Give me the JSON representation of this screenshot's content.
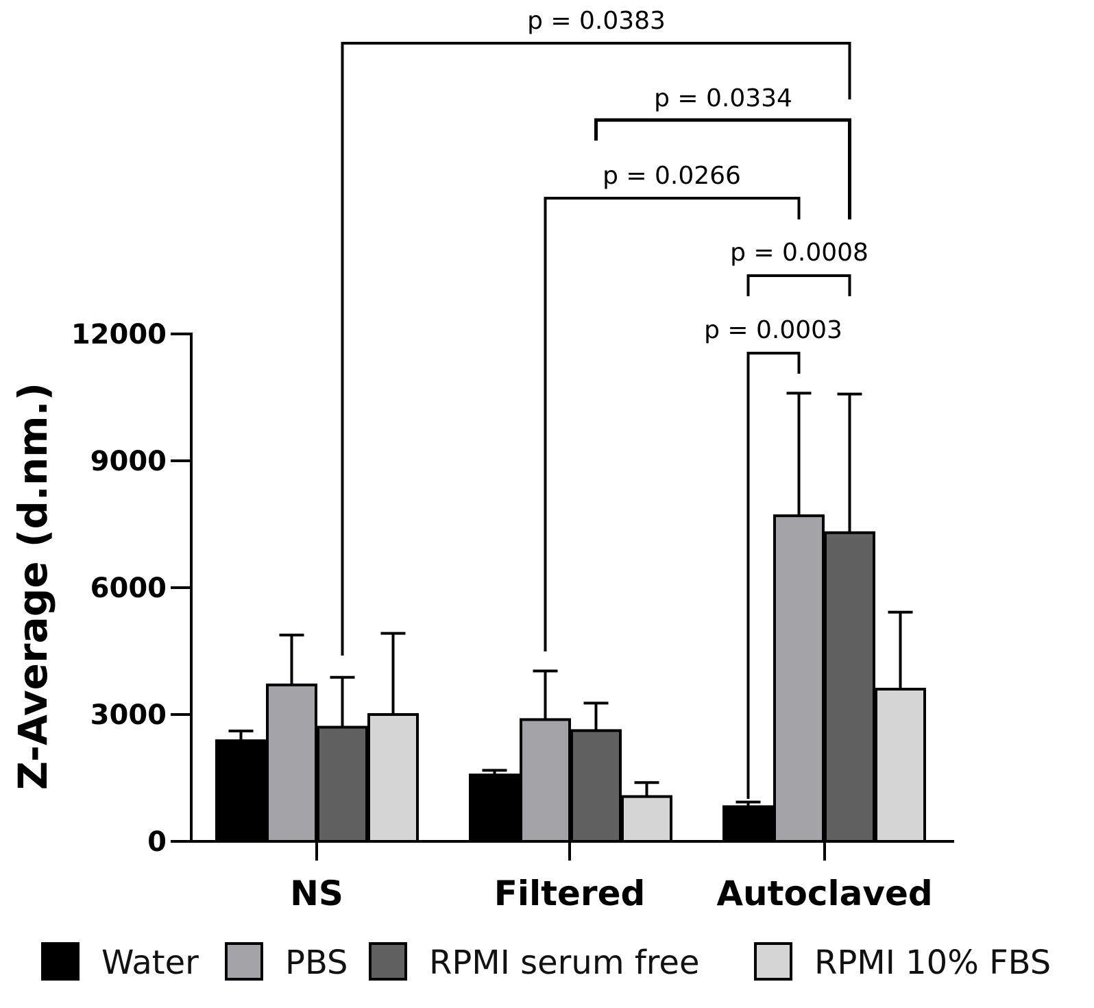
{
  "chart_data": {
    "type": "bar",
    "title": "",
    "xlabel": "",
    "ylabel": "Z-Average (d.nm.)",
    "ylim": [
      0,
      12000
    ],
    "yticks": [
      0,
      3000,
      6000,
      9000,
      12000
    ],
    "ytick_labels": [
      "0",
      "3000",
      "6000",
      "9000",
      "12000"
    ],
    "categories": [
      "NS",
      "Filtered",
      "Autoclaved"
    ],
    "series": [
      {
        "name": "Water",
        "color": "#000000",
        "values": [
          2380,
          1570,
          820
        ],
        "errors": [
          230,
          110,
          110
        ]
      },
      {
        "name": "PBS",
        "color": "#a3a3a8",
        "values": [
          3700,
          2880,
          7700
        ],
        "errors": [
          1180,
          1150,
          2900
        ]
      },
      {
        "name": "RPMI serum free",
        "color": "#616161",
        "values": [
          2700,
          2620,
          7300
        ],
        "errors": [
          1180,
          650,
          3280
        ]
      },
      {
        "name": "RPMI 10% FBS",
        "color": "#d6d6d6",
        "values": [
          3000,
          1060,
          3600
        ],
        "errors": [
          1920,
          330,
          1820
        ]
      }
    ],
    "annotations": [
      {
        "text": "p = 0.0383",
        "from": "NS / RPMI serum free",
        "to": "Autoclaved / RPMI serum free"
      },
      {
        "text": "p = 0.0334",
        "from": "Filtered / RPMI serum free",
        "to": "Autoclaved / RPMI serum free"
      },
      {
        "text": "p = 0.0266",
        "from": "Filtered / PBS",
        "to": "Autoclaved / PBS"
      },
      {
        "text": "p = 0.0008",
        "from": "Autoclaved / Water",
        "to": "Autoclaved / RPMI serum free"
      },
      {
        "text": "p = 0.0003",
        "from": "Autoclaved / Water",
        "to": "Autoclaved / PBS"
      }
    ],
    "legend_position": "bottom",
    "grid": false
  }
}
